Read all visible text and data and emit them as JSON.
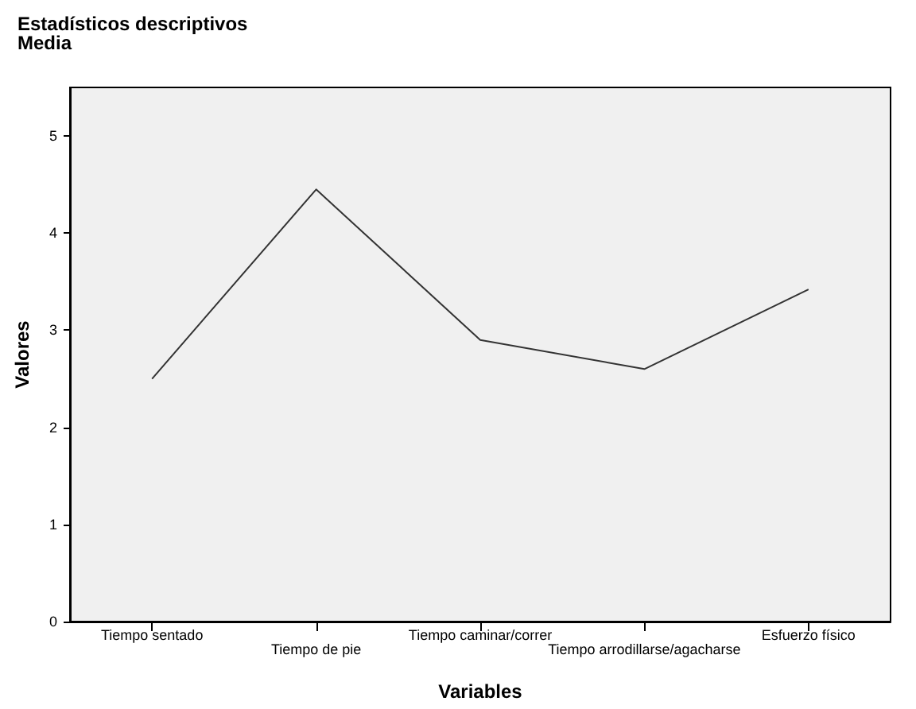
{
  "chart_data": {
    "type": "line",
    "title": "Estadísticos descriptivos",
    "subtitle": "Media",
    "xlabel": "Variables",
    "ylabel": "Valores",
    "categories": [
      "Tiempo sentado",
      "Tiempo de pie",
      "Tiempo caminar/correr",
      "Tiempo arrodillarse/agacharse",
      "Esfuerzo físico"
    ],
    "series": [
      {
        "color": "#333333",
        "values": [
          2.5,
          4.45,
          2.9,
          2.6,
          3.42
        ]
      }
    ],
    "ylim": [
      0,
      5.5
    ],
    "yticks": [
      0,
      1,
      2,
      3,
      4,
      5
    ],
    "grid": false,
    "marker": "none",
    "line_style": "solid"
  }
}
